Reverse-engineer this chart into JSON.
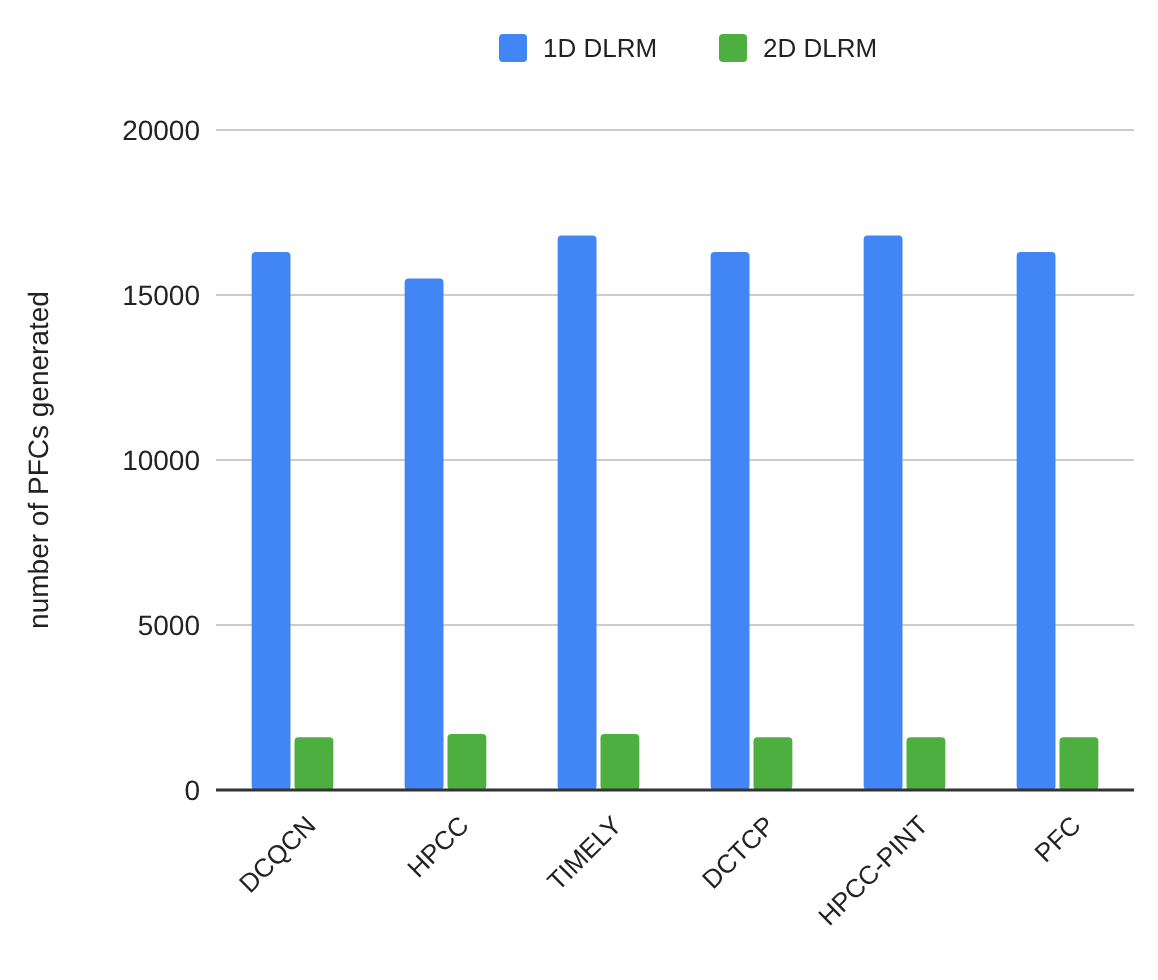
{
  "chart_data": {
    "type": "bar",
    "ylabel": "number of PFCs generated",
    "categories": [
      "DCQCN",
      "HPCC",
      "TIMELY",
      "DCTCP",
      "HPCC-PINT",
      "PFC"
    ],
    "series": [
      {
        "name": "1D DLRM",
        "color": "#4285f4",
        "values": [
          16300,
          15500,
          16800,
          16300,
          16800,
          16300
        ]
      },
      {
        "name": "2D DLRM",
        "color": "#4caf3f",
        "values": [
          1600,
          1700,
          1700,
          1600,
          1600,
          1600
        ]
      }
    ],
    "ylim": [
      0,
      20000
    ],
    "yticks": [
      0,
      5000,
      10000,
      15000,
      20000
    ],
    "grid": "y",
    "legend": "top"
  }
}
